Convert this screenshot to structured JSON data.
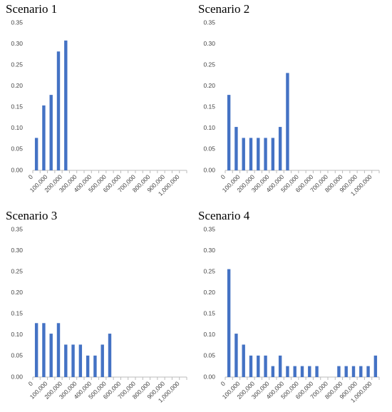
{
  "chart_data": [
    {
      "type": "bar",
      "title": "Scenario 1",
      "color": "#4472c4",
      "categories": [
        "0",
        null,
        "100,000",
        null,
        "200,000",
        null,
        "300,000",
        null,
        "400,000",
        null,
        "500,000",
        null,
        "600,000",
        null,
        "700,000",
        null,
        "800,000",
        null,
        "900,000",
        null,
        "1,000,000"
      ],
      "values": [
        0.077,
        0.154,
        0.179,
        0.282,
        0.308,
        0,
        0,
        0,
        0,
        0,
        0,
        0,
        0,
        0,
        0,
        0,
        0,
        0,
        0,
        0,
        0
      ],
      "ylim": [
        0,
        0.35
      ],
      "yticks": [
        {
          "value": 0,
          "label": "0.00"
        },
        0.05,
        {
          "value": 0.1,
          "label": "0.10"
        },
        0.15,
        {
          "value": 0.2,
          "label": "0.20"
        },
        0.25,
        {
          "value": 0.3,
          "label": "0.30"
        },
        0.35
      ]
    },
    {
      "type": "bar",
      "title": "Scenario 2",
      "color": "#4472c4",
      "categories": [
        "0",
        null,
        "100,000",
        null,
        "200,000",
        null,
        "300,000",
        null,
        "400,000",
        null,
        "500,000",
        null,
        "600,000",
        null,
        "700,000",
        null,
        "800,000",
        null,
        "900,000",
        null,
        "1,000,000"
      ],
      "values": [
        0.179,
        0.103,
        0.077,
        0.077,
        0.077,
        0.077,
        0.077,
        0.103,
        0.231,
        0,
        0,
        0,
        0,
        0,
        0,
        0,
        0,
        0,
        0,
        0,
        0
      ],
      "ylim": [
        0,
        0.35
      ],
      "yticks": [
        {
          "value": 0,
          "label": "0.00"
        },
        0.05,
        {
          "value": 0.1,
          "label": "0.10"
        },
        0.15,
        {
          "value": 0.2,
          "label": "0.20"
        },
        0.25,
        {
          "value": 0.3,
          "label": "0.30"
        },
        0.35
      ]
    },
    {
      "type": "bar",
      "title": "Scenario 3",
      "color": "#4472c4",
      "categories": [
        "0",
        null,
        "100,000",
        null,
        "200,000",
        null,
        "300,000",
        null,
        "400,000",
        null,
        "500,000",
        null,
        "600,000",
        null,
        "700,000",
        null,
        "800,000",
        null,
        "900,000",
        null,
        "1,000,000"
      ],
      "values": [
        0.128,
        0.128,
        0.103,
        0.128,
        0.077,
        0.077,
        0.077,
        0.051,
        0.051,
        0.077,
        0.103,
        0,
        0,
        0,
        0,
        0,
        0,
        0,
        0,
        0,
        0
      ],
      "ylim": [
        0,
        0.35
      ],
      "yticks": [
        {
          "value": 0,
          "label": "0.00"
        },
        0.05,
        {
          "value": 0.1,
          "label": "0.10"
        },
        0.15,
        {
          "value": 0.2,
          "label": "0.20"
        },
        0.25,
        {
          "value": 0.3,
          "label": "0.30"
        },
        0.35
      ]
    },
    {
      "type": "bar",
      "title": "Scenario 4",
      "color": "#4472c4",
      "categories": [
        "0",
        null,
        "100,000",
        null,
        "200,000",
        null,
        "300,000",
        null,
        "400,000",
        null,
        "500,000",
        null,
        "600,000",
        null,
        "700,000",
        null,
        "800,000",
        null,
        "900,000",
        null,
        "1,000,000"
      ],
      "values": [
        0.256,
        0.103,
        0.077,
        0.051,
        0.051,
        0.051,
        0.026,
        0.051,
        0.026,
        0.026,
        0.026,
        0.026,
        0.026,
        0,
        0,
        0.026,
        0.026,
        0.026,
        0.026,
        0.026,
        0.051
      ],
      "ylim": [
        0,
        0.35
      ],
      "yticks": [
        {
          "value": 0,
          "label": "0.00"
        },
        0.05,
        {
          "value": 0.1,
          "label": "0.10"
        },
        0.15,
        {
          "value": 0.2,
          "label": "0.20"
        },
        0.25,
        {
          "value": 0.3,
          "label": "0.30"
        },
        0.35
      ]
    }
  ]
}
